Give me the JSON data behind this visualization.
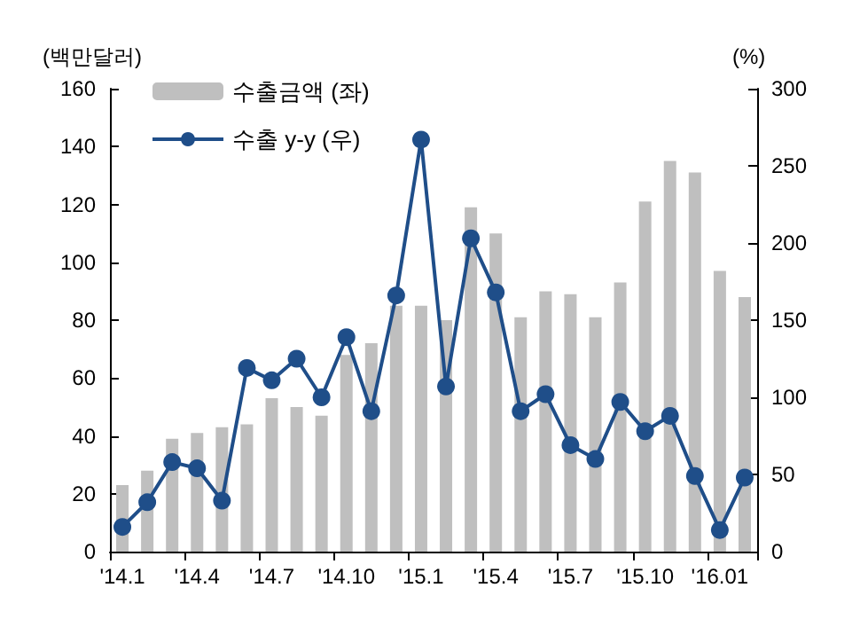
{
  "chart_data": {
    "type": "bar",
    "ylabel": "(백만달러)",
    "y2label": "(%)",
    "categories": [
      "'14.1",
      null,
      null,
      "'14.4",
      null,
      null,
      "'14.7",
      null,
      null,
      "'14.10",
      null,
      null,
      "'15.1",
      null,
      null,
      "'15.4",
      null,
      null,
      "'15.7",
      null,
      null,
      "'15.10",
      null,
      null,
      "'16.01",
      null
    ],
    "series": [
      {
        "name": "수출금액 (좌)",
        "color": "#bfbfbf",
        "values": [
          23,
          28,
          39,
          41,
          43,
          44,
          53,
          50,
          47,
          68,
          72,
          85,
          85,
          80,
          119,
          110,
          81,
          90,
          89,
          81,
          93,
          121,
          135,
          131,
          97,
          88
        ]
      },
      {
        "name": "수출 y-y (우)",
        "type": "line",
        "axis": "y2",
        "color": "#1f4e89",
        "values": [
          16,
          32,
          58,
          54,
          33,
          119,
          111,
          125,
          100,
          139,
          91,
          166,
          267,
          107,
          203,
          168,
          91,
          102,
          69,
          60,
          97,
          78,
          88,
          49,
          14,
          48
        ]
      }
    ],
    "ylim": [
      0,
      160
    ],
    "yticks": [
      0,
      20,
      40,
      60,
      80,
      100,
      120,
      140,
      160
    ],
    "y2lim": [
      0,
      300
    ],
    "y2ticks": [
      0,
      50,
      100,
      150,
      200,
      250,
      300
    ],
    "marker": "circle",
    "line_style": "solid",
    "legend": "top left",
    "grid": false
  }
}
